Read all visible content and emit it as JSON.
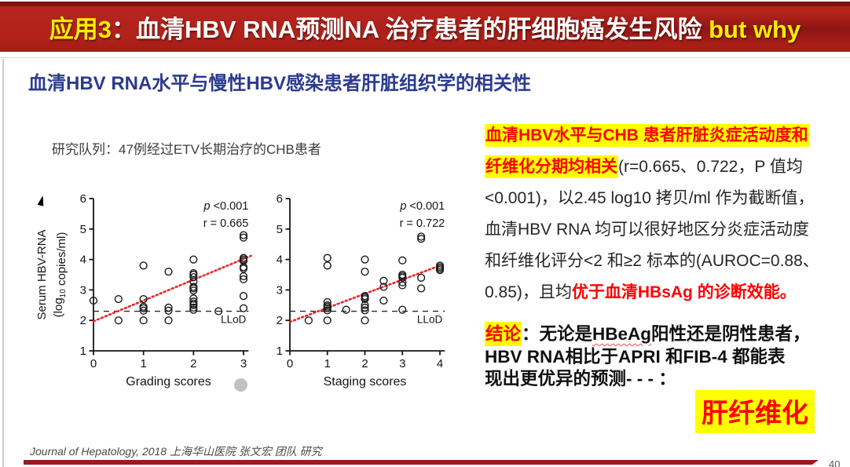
{
  "slide": {
    "header": {
      "app_label": "应用3",
      "title_main": "：血清HBV RNA预测NA 治疗患者的肝细胞癌发生风险",
      "title_suffix": " but why"
    },
    "subtitle": "血清HBV RNA水平与慢性HBV感染患者肝脏组织学的相关性",
    "cohort_note": "研究队列：47例经过ETV长期治疗的CHB患者",
    "findings": {
      "segments": [
        {
          "t": "血清HBV水平与CHB 患者肝脏炎症活动度和\n纤维化分期均相关",
          "s": "hl"
        },
        {
          "t": "(r=0.665、0.722，P 值均\n<0.001)，以2.45 log10 拷贝/ml 作为截断值，\n血清HBV RNA 均可以很好地区分炎症活动度\n和纤维化评分<2 和≥2 标本的(AUROC=0.88、\n0.85)，且均",
          "s": "n"
        },
        {
          "t": "优于血清HBsAg 的诊断效能。",
          "s": "rb"
        }
      ]
    },
    "conclusion": {
      "segments": [
        {
          "t": "结论",
          "s": "hl"
        },
        {
          "t": "：无论是",
          "s": "b"
        },
        {
          "t": "HBeAg",
          "s": "bw"
        },
        {
          "t": "阳性还是阴性患者，\nHBV RNA相比于APRI 和FIB-4 都能表\n现出更优异的预测- - - ：",
          "s": "b"
        }
      ],
      "big_term": "肝纤维化"
    },
    "footer": "Journal of Hepatology, 2018 上海华山医院 张文宏 团队 研究",
    "page_number": "40"
  },
  "colors": {
    "header_red": "#b2221b",
    "header_strip_red": "#7d120f",
    "accent_yellow": "#ffee00",
    "highlight_yellow": "#ffff00",
    "text_red": "#ff0000",
    "title_blue": "#2b3a8f",
    "bottom_bar_red": "#9c1a1f",
    "trend_red": "#e8262b"
  },
  "chart_data": [
    {
      "type": "scatter",
      "title": "",
      "xlabel": "Grading scores",
      "ylabel": "Serum HBV-RNA\n(log10 copies/ml)",
      "xlim": [
        0,
        3.1
      ],
      "ylim": [
        1,
        6
      ],
      "xticks": [
        0,
        1,
        2,
        3
      ],
      "yticks": [
        1,
        2,
        3,
        4,
        5,
        6
      ],
      "p_label": "p <0.001",
      "r_label": "r = 0.665",
      "lod": {
        "value": 2.3,
        "label": "LLoD"
      },
      "trend": {
        "x": [
          0,
          3.15
        ],
        "y": [
          1.97,
          4.12
        ]
      },
      "points": [
        [
          0,
          2.65
        ],
        [
          0.5,
          2.7
        ],
        [
          0.5,
          2.0
        ],
        [
          1,
          3.8
        ],
        [
          1,
          2.7
        ],
        [
          1,
          2.45
        ],
        [
          1,
          2.4
        ],
        [
          1,
          2.32
        ],
        [
          1,
          2.0
        ],
        [
          1.5,
          3.6
        ],
        [
          1.5,
          2.42
        ],
        [
          1.5,
          2.32
        ],
        [
          1.5,
          2.0
        ],
        [
          2,
          4.0
        ],
        [
          2,
          3.55
        ],
        [
          2,
          3.5
        ],
        [
          2,
          3.42
        ],
        [
          2,
          3.28
        ],
        [
          2,
          3.1
        ],
        [
          2,
          3.05
        ],
        [
          2,
          2.98
        ],
        [
          2,
          2.72
        ],
        [
          2,
          2.62
        ],
        [
          2,
          2.55
        ],
        [
          2,
          2.5
        ],
        [
          2,
          2.42
        ],
        [
          2,
          2.35
        ],
        [
          2.5,
          2.3
        ],
        [
          3,
          4.8
        ],
        [
          3,
          4.72
        ],
        [
          3,
          4.05
        ],
        [
          3,
          4.0
        ],
        [
          3,
          3.95
        ],
        [
          3,
          3.75
        ],
        [
          3,
          3.7
        ],
        [
          3,
          3.45
        ],
        [
          3,
          3.35
        ],
        [
          3,
          2.8
        ],
        [
          3,
          2.4
        ]
      ]
    },
    {
      "type": "scatter",
      "title": "",
      "xlabel": "Staging scores",
      "ylabel": "",
      "xlim": [
        0,
        4.13
      ],
      "ylim": [
        1,
        6
      ],
      "xticks": [
        0,
        1,
        2,
        3,
        4
      ],
      "yticks": [
        1,
        2,
        3,
        4,
        5,
        6
      ],
      "p_label": "p <0.001",
      "r_label": "r = 0.722",
      "lod": {
        "value": 2.3,
        "label": "LLoD"
      },
      "trend": {
        "x": [
          0,
          4.0
        ],
        "y": [
          1.95,
          3.8
        ]
      },
      "points": [
        [
          0.5,
          2.0
        ],
        [
          1,
          4.05
        ],
        [
          1,
          3.8
        ],
        [
          1,
          2.6
        ],
        [
          1,
          2.5
        ],
        [
          1,
          2.45
        ],
        [
          1,
          2.4
        ],
        [
          1,
          2.33
        ],
        [
          1,
          2.0
        ],
        [
          1.5,
          2.35
        ],
        [
          2,
          4.0
        ],
        [
          2,
          3.6
        ],
        [
          2,
          2.8
        ],
        [
          2,
          2.75
        ],
        [
          2,
          2.7
        ],
        [
          2,
          2.5
        ],
        [
          2,
          2.42
        ],
        [
          2,
          2.33
        ],
        [
          2,
          2.0
        ],
        [
          2.5,
          3.3
        ],
        [
          2.5,
          3.1
        ],
        [
          2.5,
          2.65
        ],
        [
          3,
          3.97
        ],
        [
          3,
          3.5
        ],
        [
          3,
          3.45
        ],
        [
          3,
          3.4
        ],
        [
          3,
          3.25
        ],
        [
          3,
          3.15
        ],
        [
          3,
          2.35
        ],
        [
          3.5,
          4.75
        ],
        [
          3.5,
          4.68
        ],
        [
          3.5,
          3.4
        ],
        [
          3.5,
          3.05
        ],
        [
          4,
          3.8
        ],
        [
          4,
          3.75
        ],
        [
          4,
          3.7
        ],
        [
          4,
          3.65
        ]
      ]
    }
  ]
}
